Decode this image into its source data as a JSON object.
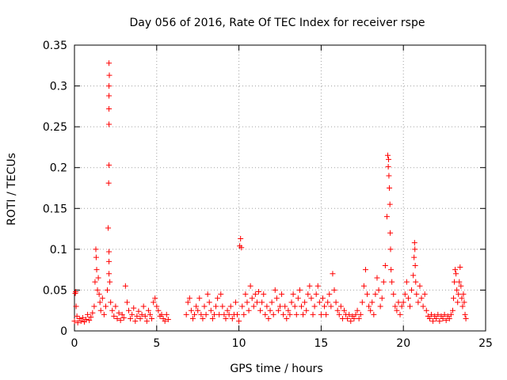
{
  "chart_data": {
    "type": "scatter",
    "title": "Day 056 of 2016, Rate Of TEC Index for receiver rspe",
    "xlabel": "GPS time / hours",
    "ylabel": "ROTI / TECUs",
    "xlim": [
      0,
      25
    ],
    "ylim": [
      0,
      0.35
    ],
    "xticks": [
      0,
      5,
      10,
      15,
      20,
      25
    ],
    "yticks": [
      0,
      0.05,
      0.1,
      0.15,
      0.2,
      0.25,
      0.3,
      0.35
    ],
    "xtick_labels": [
      "0",
      "5",
      "10",
      "15",
      "20",
      "25"
    ],
    "ytick_labels": [
      "0",
      "0.05",
      "0.1",
      "0.15",
      "0.2",
      "0.25",
      "0.3",
      "0.35"
    ],
    "grid": true,
    "marker": "+",
    "series": [
      {
        "name": "ROTI",
        "color": "#ff0000",
        "points": [
          [
            0.0,
            0.012
          ],
          [
            0.05,
            0.046
          ],
          [
            0.08,
            0.048
          ],
          [
            0.1,
            0.03
          ],
          [
            0.15,
            0.018
          ],
          [
            0.2,
            0.01
          ],
          [
            0.3,
            0.015
          ],
          [
            0.4,
            0.012
          ],
          [
            0.5,
            0.016
          ],
          [
            0.6,
            0.011
          ],
          [
            0.7,
            0.014
          ],
          [
            0.8,
            0.02
          ],
          [
            0.9,
            0.013
          ],
          [
            1.0,
            0.017
          ],
          [
            1.1,
            0.022
          ],
          [
            1.2,
            0.03
          ],
          [
            1.25,
            0.06
          ],
          [
            1.3,
            0.1
          ],
          [
            1.32,
            0.09
          ],
          [
            1.35,
            0.075
          ],
          [
            1.4,
            0.05
          ],
          [
            1.45,
            0.065
          ],
          [
            1.5,
            0.045
          ],
          [
            1.55,
            0.035
          ],
          [
            1.6,
            0.025
          ],
          [
            1.7,
            0.04
          ],
          [
            1.8,
            0.02
          ],
          [
            1.9,
            0.03
          ],
          [
            2.0,
            0.05
          ],
          [
            2.05,
            0.126
          ],
          [
            2.08,
            0.181
          ],
          [
            2.1,
            0.203
          ],
          [
            2.1,
            0.253
          ],
          [
            2.1,
            0.272
          ],
          [
            2.1,
            0.288
          ],
          [
            2.1,
            0.3
          ],
          [
            2.12,
            0.313
          ],
          [
            2.1,
            0.328
          ],
          [
            2.1,
            0.097
          ],
          [
            2.1,
            0.085
          ],
          [
            2.1,
            0.07
          ],
          [
            2.15,
            0.06
          ],
          [
            2.2,
            0.035
          ],
          [
            2.3,
            0.025
          ],
          [
            2.4,
            0.018
          ],
          [
            2.5,
            0.03
          ],
          [
            2.6,
            0.015
          ],
          [
            2.7,
            0.022
          ],
          [
            2.8,
            0.013
          ],
          [
            2.9,
            0.02
          ],
          [
            3.0,
            0.016
          ],
          [
            3.1,
            0.055
          ],
          [
            3.2,
            0.035
          ],
          [
            3.3,
            0.025
          ],
          [
            3.4,
            0.015
          ],
          [
            3.5,
            0.02
          ],
          [
            3.6,
            0.028
          ],
          [
            3.7,
            0.012
          ],
          [
            3.8,
            0.018
          ],
          [
            3.9,
            0.024
          ],
          [
            4.0,
            0.015
          ],
          [
            4.1,
            0.02
          ],
          [
            4.2,
            0.03
          ],
          [
            4.3,
            0.018
          ],
          [
            4.4,
            0.012
          ],
          [
            4.5,
            0.025
          ],
          [
            4.6,
            0.02
          ],
          [
            4.7,
            0.015
          ],
          [
            4.8,
            0.035
          ],
          [
            4.9,
            0.04
          ],
          [
            5.0,
            0.03
          ],
          [
            5.1,
            0.025
          ],
          [
            5.2,
            0.018
          ],
          [
            5.3,
            0.02
          ],
          [
            5.4,
            0.015
          ],
          [
            5.5,
            0.012
          ],
          [
            5.6,
            0.02
          ],
          [
            5.7,
            0.014
          ],
          [
            6.8,
            0.02
          ],
          [
            6.9,
            0.035
          ],
          [
            7.0,
            0.04
          ],
          [
            7.1,
            0.025
          ],
          [
            7.2,
            0.015
          ],
          [
            7.3,
            0.02
          ],
          [
            7.4,
            0.03
          ],
          [
            7.5,
            0.025
          ],
          [
            7.6,
            0.04
          ],
          [
            7.7,
            0.02
          ],
          [
            7.8,
            0.015
          ],
          [
            7.9,
            0.03
          ],
          [
            8.0,
            0.02
          ],
          [
            8.1,
            0.045
          ],
          [
            8.2,
            0.035
          ],
          [
            8.3,
            0.025
          ],
          [
            8.4,
            0.015
          ],
          [
            8.5,
            0.02
          ],
          [
            8.6,
            0.03
          ],
          [
            8.7,
            0.04
          ],
          [
            8.8,
            0.02
          ],
          [
            8.9,
            0.045
          ],
          [
            9.0,
            0.03
          ],
          [
            9.1,
            0.02
          ],
          [
            9.2,
            0.015
          ],
          [
            9.3,
            0.025
          ],
          [
            9.4,
            0.02
          ],
          [
            9.5,
            0.03
          ],
          [
            9.6,
            0.015
          ],
          [
            9.7,
            0.02
          ],
          [
            9.8,
            0.035
          ],
          [
            9.9,
            0.02
          ],
          [
            10.0,
            0.012
          ],
          [
            10.05,
            0.104
          ],
          [
            10.1,
            0.113
          ],
          [
            10.15,
            0.102
          ],
          [
            10.2,
            0.03
          ],
          [
            10.3,
            0.02
          ],
          [
            10.4,
            0.045
          ],
          [
            10.5,
            0.035
          ],
          [
            10.6,
            0.025
          ],
          [
            10.7,
            0.055
          ],
          [
            10.8,
            0.04
          ],
          [
            10.9,
            0.03
          ],
          [
            11.0,
            0.045
          ],
          [
            11.1,
            0.035
          ],
          [
            11.2,
            0.048
          ],
          [
            11.3,
            0.025
          ],
          [
            11.4,
            0.035
          ],
          [
            11.5,
            0.045
          ],
          [
            11.6,
            0.02
          ],
          [
            11.7,
            0.03
          ],
          [
            11.8,
            0.015
          ],
          [
            11.9,
            0.025
          ],
          [
            12.0,
            0.035
          ],
          [
            12.1,
            0.02
          ],
          [
            12.2,
            0.05
          ],
          [
            12.3,
            0.04
          ],
          [
            12.4,
            0.025
          ],
          [
            12.5,
            0.03
          ],
          [
            12.6,
            0.045
          ],
          [
            12.7,
            0.02
          ],
          [
            12.8,
            0.03
          ],
          [
            12.9,
            0.015
          ],
          [
            13.0,
            0.025
          ],
          [
            13.1,
            0.02
          ],
          [
            13.2,
            0.035
          ],
          [
            13.3,
            0.045
          ],
          [
            13.4,
            0.03
          ],
          [
            13.5,
            0.02
          ],
          [
            13.6,
            0.04
          ],
          [
            13.7,
            0.05
          ],
          [
            13.8,
            0.03
          ],
          [
            13.9,
            0.02
          ],
          [
            14.0,
            0.035
          ],
          [
            14.1,
            0.025
          ],
          [
            14.2,
            0.045
          ],
          [
            14.3,
            0.055
          ],
          [
            14.4,
            0.04
          ],
          [
            14.5,
            0.02
          ],
          [
            14.6,
            0.03
          ],
          [
            14.7,
            0.045
          ],
          [
            14.8,
            0.055
          ],
          [
            14.9,
            0.035
          ],
          [
            15.0,
            0.02
          ],
          [
            15.1,
            0.04
          ],
          [
            15.2,
            0.03
          ],
          [
            15.3,
            0.02
          ],
          [
            15.4,
            0.035
          ],
          [
            15.5,
            0.045
          ],
          [
            15.6,
            0.03
          ],
          [
            15.7,
            0.07
          ],
          [
            15.8,
            0.05
          ],
          [
            15.9,
            0.035
          ],
          [
            16.0,
            0.025
          ],
          [
            16.1,
            0.02
          ],
          [
            16.2,
            0.03
          ],
          [
            16.3,
            0.015
          ],
          [
            16.4,
            0.025
          ],
          [
            16.5,
            0.02
          ],
          [
            16.6,
            0.015
          ],
          [
            16.7,
            0.02
          ],
          [
            16.8,
            0.012
          ],
          [
            16.9,
            0.018
          ],
          [
            17.0,
            0.015
          ],
          [
            17.1,
            0.02
          ],
          [
            17.2,
            0.025
          ],
          [
            17.3,
            0.015
          ],
          [
            17.4,
            0.02
          ],
          [
            17.5,
            0.035
          ],
          [
            17.6,
            0.055
          ],
          [
            17.7,
            0.075
          ],
          [
            17.8,
            0.045
          ],
          [
            17.9,
            0.03
          ],
          [
            18.0,
            0.025
          ],
          [
            18.1,
            0.035
          ],
          [
            18.2,
            0.02
          ],
          [
            18.3,
            0.045
          ],
          [
            18.4,
            0.065
          ],
          [
            18.5,
            0.05
          ],
          [
            18.6,
            0.03
          ],
          [
            18.7,
            0.04
          ],
          [
            18.8,
            0.06
          ],
          [
            18.9,
            0.08
          ],
          [
            19.0,
            0.14
          ],
          [
            19.05,
            0.215
          ],
          [
            19.08,
            0.201
          ],
          [
            19.1,
            0.21
          ],
          [
            19.12,
            0.19
          ],
          [
            19.15,
            0.175
          ],
          [
            19.18,
            0.155
          ],
          [
            19.2,
            0.12
          ],
          [
            19.22,
            0.1
          ],
          [
            19.25,
            0.075
          ],
          [
            19.3,
            0.06
          ],
          [
            19.4,
            0.045
          ],
          [
            19.5,
            0.03
          ],
          [
            19.6,
            0.025
          ],
          [
            19.7,
            0.035
          ],
          [
            19.8,
            0.02
          ],
          [
            19.9,
            0.03
          ],
          [
            20.0,
            0.035
          ],
          [
            20.1,
            0.045
          ],
          [
            20.2,
            0.06
          ],
          [
            20.3,
            0.04
          ],
          [
            20.4,
            0.03
          ],
          [
            20.5,
            0.05
          ],
          [
            20.6,
            0.068
          ],
          [
            20.65,
            0.09
          ],
          [
            20.68,
            0.108
          ],
          [
            20.7,
            0.1
          ],
          [
            20.72,
            0.08
          ],
          [
            20.75,
            0.06
          ],
          [
            20.8,
            0.045
          ],
          [
            20.9,
            0.035
          ],
          [
            21.0,
            0.055
          ],
          [
            21.1,
            0.04
          ],
          [
            21.2,
            0.03
          ],
          [
            21.3,
            0.045
          ],
          [
            21.4,
            0.025
          ],
          [
            21.5,
            0.018
          ],
          [
            21.6,
            0.015
          ],
          [
            21.7,
            0.02
          ],
          [
            21.8,
            0.012
          ],
          [
            21.9,
            0.018
          ],
          [
            22.0,
            0.015
          ],
          [
            22.1,
            0.02
          ],
          [
            22.2,
            0.012
          ],
          [
            22.3,
            0.018
          ],
          [
            22.4,
            0.015
          ],
          [
            22.5,
            0.02
          ],
          [
            22.6,
            0.013
          ],
          [
            22.7,
            0.018
          ],
          [
            22.8,
            0.015
          ],
          [
            22.9,
            0.02
          ],
          [
            23.0,
            0.025
          ],
          [
            23.05,
            0.04
          ],
          [
            23.1,
            0.06
          ],
          [
            23.15,
            0.075
          ],
          [
            23.2,
            0.07
          ],
          [
            23.25,
            0.05
          ],
          [
            23.3,
            0.035
          ],
          [
            23.35,
            0.045
          ],
          [
            23.4,
            0.06
          ],
          [
            23.45,
            0.078
          ],
          [
            23.5,
            0.055
          ],
          [
            23.55,
            0.04
          ],
          [
            23.6,
            0.03
          ],
          [
            23.65,
            0.045
          ],
          [
            23.7,
            0.035
          ],
          [
            23.75,
            0.02
          ],
          [
            23.8,
            0.015
          ]
        ]
      }
    ]
  }
}
